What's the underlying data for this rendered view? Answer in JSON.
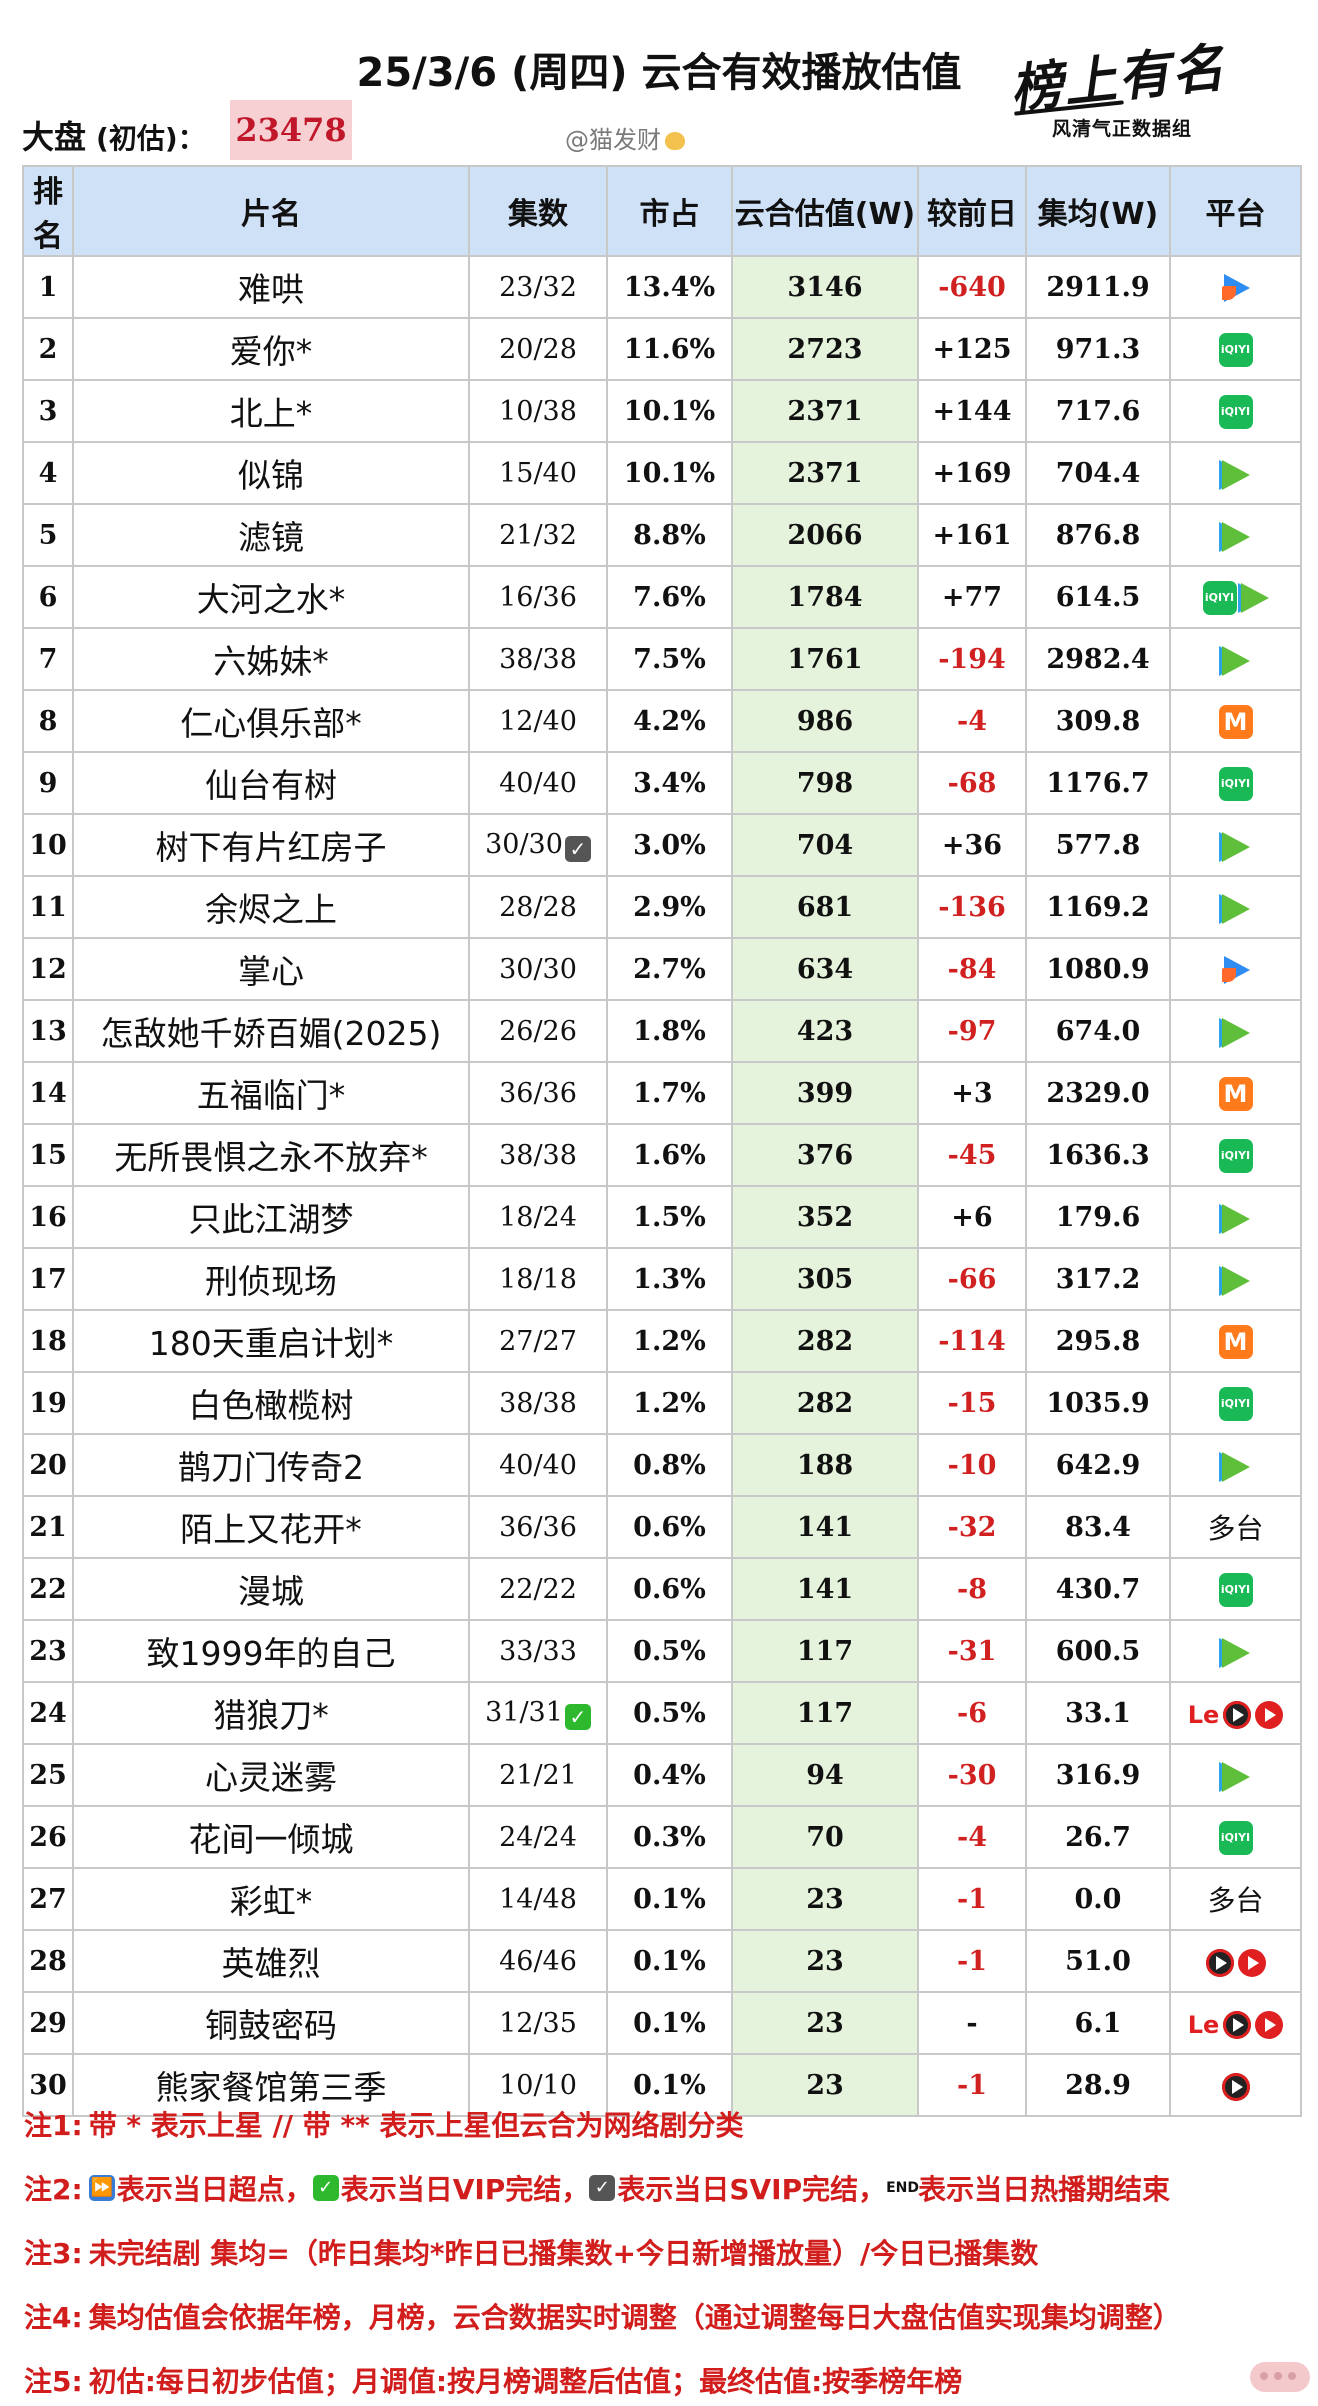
{
  "header": {
    "title": "25/3/6 (周四) 云合有效播放估值",
    "dapan_label": "大盘",
    "dapan_sub": "(初估)：",
    "dapan_value": "23478",
    "watermark": "@猫发财",
    "brand": "榜上有名",
    "brand_sub": "风清气正数据组"
  },
  "table": {
    "columns": [
      "排名",
      "片名",
      "集数",
      "市占",
      "云合估值(W)",
      "较前日",
      "集均(W)",
      "平台"
    ],
    "rows": [
      {
        "rank": "1",
        "name": "难哄",
        "eps": "23/32",
        "mark": "",
        "share": "13.4%",
        "est": "3146",
        "delta": "-640",
        "avg": "2911.9",
        "platform": [
          "youku"
        ],
        "platform_text": ""
      },
      {
        "rank": "2",
        "name": "爱你*",
        "eps": "20/28",
        "mark": "",
        "share": "11.6%",
        "est": "2723",
        "delta": "+125",
        "avg": "971.3",
        "platform": [
          "iqiyi"
        ],
        "platform_text": ""
      },
      {
        "rank": "3",
        "name": "北上*",
        "eps": "10/38",
        "mark": "",
        "share": "10.1%",
        "est": "2371",
        "delta": "+144",
        "avg": "717.6",
        "platform": [
          "iqiyi"
        ],
        "platform_text": ""
      },
      {
        "rank": "4",
        "name": "似锦",
        "eps": "15/40",
        "mark": "",
        "share": "10.1%",
        "est": "2371",
        "delta": "+169",
        "avg": "704.4",
        "platform": [
          "tencent"
        ],
        "platform_text": ""
      },
      {
        "rank": "5",
        "name": "滤镜",
        "eps": "21/32",
        "mark": "",
        "share": "8.8%",
        "est": "2066",
        "delta": "+161",
        "avg": "876.8",
        "platform": [
          "tencent"
        ],
        "platform_text": ""
      },
      {
        "rank": "6",
        "name": "大河之水*",
        "eps": "16/36",
        "mark": "",
        "share": "7.6%",
        "est": "1784",
        "delta": "+77",
        "avg": "614.5",
        "platform": [
          "iqiyi",
          "tencent"
        ],
        "platform_text": ""
      },
      {
        "rank": "7",
        "name": "六姊妹*",
        "eps": "38/38",
        "mark": "",
        "share": "7.5%",
        "est": "1761",
        "delta": "-194",
        "avg": "2982.4",
        "platform": [
          "tencent"
        ],
        "platform_text": ""
      },
      {
        "rank": "8",
        "name": "仁心俱乐部*",
        "eps": "12/40",
        "mark": "",
        "share": "4.2%",
        "est": "986",
        "delta": "-4",
        "avg": "309.8",
        "platform": [
          "mango"
        ],
        "platform_text": ""
      },
      {
        "rank": "9",
        "name": "仙台有树",
        "eps": "40/40",
        "mark": "",
        "share": "3.4%",
        "est": "798",
        "delta": "-68",
        "avg": "1176.7",
        "platform": [
          "iqiyi"
        ],
        "platform_text": ""
      },
      {
        "rank": "10",
        "name": "树下有片红房子",
        "eps": "30/30",
        "mark": "svip",
        "share": "3.0%",
        "est": "704",
        "delta": "+36",
        "avg": "577.8",
        "platform": [
          "tencent"
        ],
        "platform_text": ""
      },
      {
        "rank": "11",
        "name": "余烬之上",
        "eps": "28/28",
        "mark": "",
        "share": "2.9%",
        "est": "681",
        "delta": "-136",
        "avg": "1169.2",
        "platform": [
          "tencent"
        ],
        "platform_text": ""
      },
      {
        "rank": "12",
        "name": "掌心",
        "eps": "30/30",
        "mark": "",
        "share": "2.7%",
        "est": "634",
        "delta": "-84",
        "avg": "1080.9",
        "platform": [
          "youku"
        ],
        "platform_text": ""
      },
      {
        "rank": "13",
        "name": "怎敌她千娇百媚(2025)",
        "eps": "26/26",
        "mark": "",
        "share": "1.8%",
        "est": "423",
        "delta": "-97",
        "avg": "674.0",
        "platform": [
          "tencent"
        ],
        "platform_text": ""
      },
      {
        "rank": "14",
        "name": "五福临门*",
        "eps": "36/36",
        "mark": "",
        "share": "1.7%",
        "est": "399",
        "delta": "+3",
        "avg": "2329.0",
        "platform": [
          "mango"
        ],
        "platform_text": ""
      },
      {
        "rank": "15",
        "name": "无所畏惧之永不放弃*",
        "eps": "38/38",
        "mark": "",
        "share": "1.6%",
        "est": "376",
        "delta": "-45",
        "avg": "1636.3",
        "platform": [
          "iqiyi"
        ],
        "platform_text": ""
      },
      {
        "rank": "16",
        "name": "只此江湖梦",
        "eps": "18/24",
        "mark": "",
        "share": "1.5%",
        "est": "352",
        "delta": "+6",
        "avg": "179.6",
        "platform": [
          "tencent"
        ],
        "platform_text": ""
      },
      {
        "rank": "17",
        "name": "刑侦现场",
        "eps": "18/18",
        "mark": "",
        "share": "1.3%",
        "est": "305",
        "delta": "-66",
        "avg": "317.2",
        "platform": [
          "tencent"
        ],
        "platform_text": ""
      },
      {
        "rank": "18",
        "name": "180天重启计划*",
        "eps": "27/27",
        "mark": "",
        "share": "1.2%",
        "est": "282",
        "delta": "-114",
        "avg": "295.8",
        "platform": [
          "mango"
        ],
        "platform_text": ""
      },
      {
        "rank": "19",
        "name": "白色橄榄树",
        "eps": "38/38",
        "mark": "",
        "share": "1.2%",
        "est": "282",
        "delta": "-15",
        "avg": "1035.9",
        "platform": [
          "iqiyi"
        ],
        "platform_text": ""
      },
      {
        "rank": "20",
        "name": "鹊刀门传奇2",
        "eps": "40/40",
        "mark": "",
        "share": "0.8%",
        "est": "188",
        "delta": "-10",
        "avg": "642.9",
        "platform": [
          "tencent"
        ],
        "platform_text": ""
      },
      {
        "rank": "21",
        "name": "陌上又花开*",
        "eps": "36/36",
        "mark": "",
        "share": "0.6%",
        "est": "141",
        "delta": "-32",
        "avg": "83.4",
        "platform": [],
        "platform_text": "多台"
      },
      {
        "rank": "22",
        "name": "漫城",
        "eps": "22/22",
        "mark": "",
        "share": "0.6%",
        "est": "141",
        "delta": "-8",
        "avg": "430.7",
        "platform": [
          "iqiyi"
        ],
        "platform_text": ""
      },
      {
        "rank": "23",
        "name": "致1999年的自己",
        "eps": "33/33",
        "mark": "",
        "share": "0.5%",
        "est": "117",
        "delta": "-31",
        "avg": "600.5",
        "platform": [
          "tencent"
        ],
        "platform_text": ""
      },
      {
        "rank": "24",
        "name": "猎狼刀*",
        "eps": "31/31",
        "mark": "vip",
        "share": "0.5%",
        "est": "117",
        "delta": "-6",
        "avg": "33.1",
        "platform": [
          "le",
          "cctv-dark",
          "cctv"
        ],
        "platform_text": ""
      },
      {
        "rank": "25",
        "name": "心灵迷雾",
        "eps": "21/21",
        "mark": "",
        "share": "0.4%",
        "est": "94",
        "delta": "-30",
        "avg": "316.9",
        "platform": [
          "tencent"
        ],
        "platform_text": ""
      },
      {
        "rank": "26",
        "name": "花间一倾城",
        "eps": "24/24",
        "mark": "",
        "share": "0.3%",
        "est": "70",
        "delta": "-4",
        "avg": "26.7",
        "platform": [
          "iqiyi"
        ],
        "platform_text": ""
      },
      {
        "rank": "27",
        "name": "彩虹*",
        "eps": "14/48",
        "mark": "",
        "share": "0.1%",
        "est": "23",
        "delta": "-1",
        "avg": "0.0",
        "platform": [],
        "platform_text": "多台"
      },
      {
        "rank": "28",
        "name": "英雄烈",
        "eps": "46/46",
        "mark": "",
        "share": "0.1%",
        "est": "23",
        "delta": "-1",
        "avg": "51.0",
        "platform": [
          "cctv-dark",
          "cctv"
        ],
        "platform_text": ""
      },
      {
        "rank": "29",
        "name": "铜鼓密码",
        "eps": "12/35",
        "mark": "",
        "share": "0.1%",
        "est": "23",
        "delta": "-",
        "avg": "6.1",
        "platform": [
          "le",
          "cctv-dark",
          "cctv"
        ],
        "platform_text": ""
      },
      {
        "rank": "30",
        "name": "熊家餐馆第三季",
        "eps": "10/10",
        "mark": "",
        "share": "0.1%",
        "est": "23",
        "delta": "-1",
        "avg": "28.9",
        "platform": [
          "cctv-dark"
        ],
        "platform_text": ""
      }
    ]
  },
  "notes": {
    "n1_label": "注1:",
    "n1_text": "带 * 表示上星 // 带 ** 表示上星但云合为网络剧分类",
    "n2_label": "注2:",
    "n2_a": "表示当日超点，",
    "n2_b": "表示当日VIP完结，",
    "n2_c": "表示当日SVIP完结，",
    "n2_d": "表示当日热播期结束",
    "n3_label": "注3:",
    "n3_text": "未完结剧 集均=（昨日集均*昨日已播集数+今日新增播放量）/今日已播集数",
    "n4_label": "注4:",
    "n4_text": "集均估值会依据年榜，月榜，云合数据实时调整（通过调整每日大盘估值实现集均调整）",
    "n5_label": "注5:",
    "n5_text": "初估:每日初步估值；月调值:按月榜调整后估值；最终估值:按季榜年榜"
  },
  "icons": {
    "check_mark": "✓",
    "fast_forward": "⏩",
    "end_label": "END"
  },
  "colors": {
    "header_bg": "#cfe1f6",
    "estimate_bg": "#e5f3dc",
    "negative": "#d02020",
    "note_text": "#d21d1d",
    "dapan_bg": "#f7d0d3"
  }
}
